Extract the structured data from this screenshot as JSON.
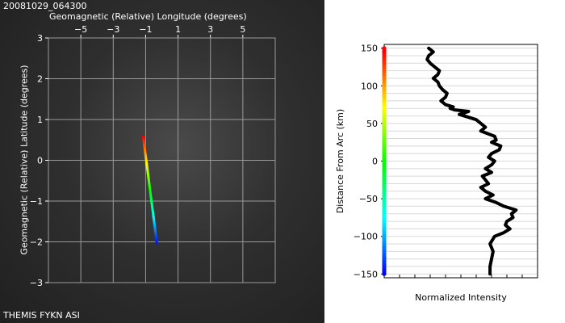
{
  "chart_data": [
    {
      "type": "scatter",
      "title": "20081029_064300",
      "xlabel": "Geomagnetic (Relative) Longitude (degrees)",
      "ylabel": "Geomagnetic (Relative) Latitude (degrees)",
      "footer": "THEMIS FYKN ASI",
      "xlim": [
        -7,
        7
      ],
      "ylim": [
        -3,
        3
      ],
      "x_ticks": [
        -5,
        -3,
        -1,
        1,
        3,
        5
      ],
      "x_tick_labels": [
        "−5",
        "−3",
        "−1",
        "1",
        "3",
        "5"
      ],
      "y_ticks": [
        3,
        2,
        1,
        0,
        -1,
        -2,
        -3
      ],
      "y_tick_labels": [
        "3",
        "2",
        "1",
        "0",
        "−1",
        "−2",
        "−3"
      ],
      "grid": true,
      "arc": {
        "start": [
          -1.15,
          0.58
        ],
        "end": [
          -0.3,
          -2.05
        ],
        "color_scale": "rainbow"
      }
    },
    {
      "type": "line",
      "xlabel": "Normalized Intensity",
      "ylabel": "Distance From Arc (km)",
      "ylim": [
        -155,
        155
      ],
      "y_ticks": [
        150,
        100,
        50,
        0,
        -50,
        -100,
        -150
      ],
      "y_tick_labels": [
        "150",
        "100",
        "50",
        "0",
        "−50",
        "−100",
        "−150"
      ],
      "grid": true,
      "colorbar": "rainbow",
      "series": [
        {
          "x": [
            0.29,
            0.32,
            0.29,
            0.28,
            0.3,
            0.33,
            0.36,
            0.35,
            0.32,
            0.35,
            0.36,
            0.38,
            0.41,
            0.4,
            0.37,
            0.4,
            0.45,
            0.43,
            0.46,
            0.55,
            0.49,
            0.6,
            0.66,
            0.63,
            0.72,
            0.73,
            0.7,
            0.76,
            0.75,
            0.7,
            0.68,
            0.72,
            0.7,
            0.66,
            0.7,
            0.64,
            0.66,
            0.68,
            0.63,
            0.66,
            0.71,
            0.66,
            0.73,
            0.78,
            0.86,
            0.83,
            0.84,
            0.8,
            0.79,
            0.82,
            0.78,
            0.72,
            0.69,
            0.71,
            0.7,
            0.69,
            0.69
          ],
          "y": [
            150,
            145,
            140,
            135,
            130,
            125,
            120,
            115,
            110,
            105,
            100,
            95,
            90,
            85,
            80,
            75,
            72,
            70,
            68,
            66,
            62,
            55,
            45,
            40,
            33,
            28,
            25,
            20,
            15,
            10,
            5,
            0,
            -5,
            -10,
            -15,
            -20,
            -25,
            -30,
            -35,
            -40,
            -45,
            -50,
            -55,
            -60,
            -65,
            -70,
            -75,
            -80,
            -85,
            -90,
            -95,
            -100,
            -110,
            -120,
            -130,
            -140,
            -150
          ]
        }
      ]
    }
  ]
}
